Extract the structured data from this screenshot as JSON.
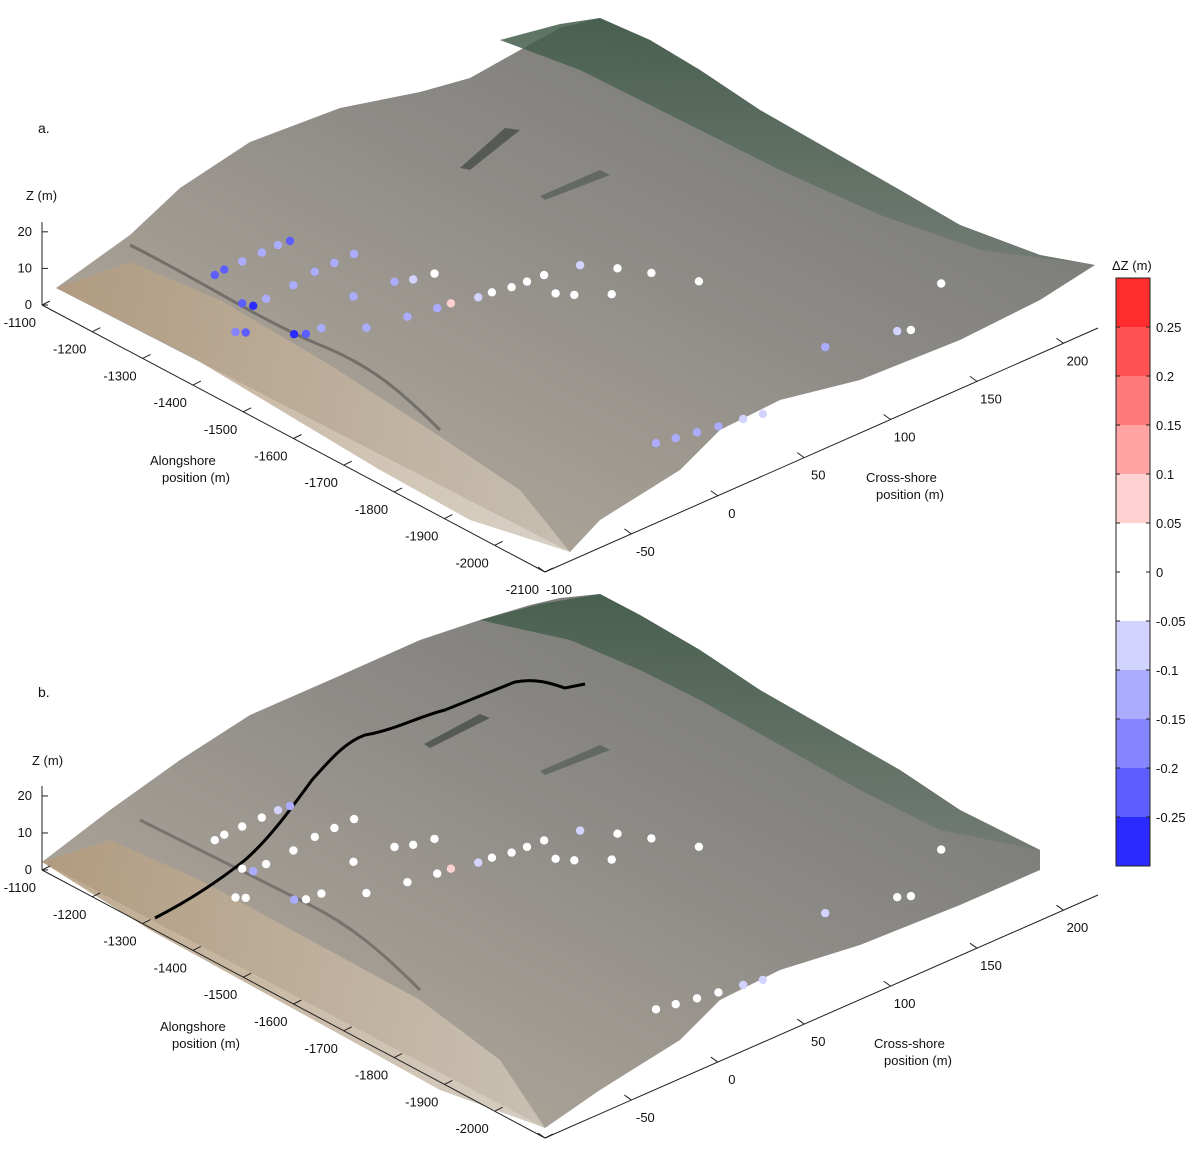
{
  "chart_data": [
    {
      "type": "scatter",
      "panel_label": "a.",
      "zlabel": "Z (m)",
      "xlabel": "Alongshore\nposition (m)",
      "ylabel": "Cross-shore\nposition (m)",
      "z_ticks": [
        0,
        10,
        20
      ],
      "x_ticks": [
        -1100,
        -1200,
        -1300,
        -1400,
        -1500,
        -1600,
        -1700,
        -1800,
        -1900,
        -2000,
        -2100
      ],
      "y_ticks": [
        -100,
        -50,
        0,
        50,
        100,
        150,
        200
      ],
      "color_variable": "ΔZ (m)",
      "points": [
        {
          "x": -1210,
          "y": -32,
          "z": 2,
          "dz": -0.22
        },
        {
          "x": -1215,
          "y": -28,
          "z": 3,
          "dz": -0.2
        },
        {
          "x": -1230,
          "y": -22,
          "z": 5,
          "dz": -0.15
        },
        {
          "x": -1245,
          "y": -15,
          "z": 7,
          "dz": -0.12
        },
        {
          "x": -1260,
          "y": -10,
          "z": 9,
          "dz": -0.15
        },
        {
          "x": -1270,
          "y": -6,
          "z": 10,
          "dz": -0.2
        },
        {
          "x": -1285,
          "y": -38,
          "z": 1,
          "dz": -0.2
        },
        {
          "x": -1300,
          "y": -36,
          "z": 1,
          "dz": -0.28
        },
        {
          "x": -1305,
          "y": -30,
          "z": 2,
          "dz": -0.15
        },
        {
          "x": -1325,
          "y": -20,
          "z": 5,
          "dz": -0.12
        },
        {
          "x": -1340,
          "y": -12,
          "z": 8,
          "dz": -0.12
        },
        {
          "x": -1355,
          "y": -5,
          "z": 10,
          "dz": -0.12
        },
        {
          "x": -1370,
          "y": 2,
          "z": 12,
          "dz": -0.15
        },
        {
          "x": -1395,
          "y": -40,
          "z": 1,
          "dz": -0.28
        },
        {
          "x": -1405,
          "y": -36,
          "z": 1,
          "dz": -0.2
        },
        {
          "x": -1415,
          "y": -30,
          "z": 2,
          "dz": -0.12
        },
        {
          "x": -1330,
          "y": -55,
          "z": 0,
          "dz": -0.18
        },
        {
          "x": -1340,
          "y": -52,
          "z": 0,
          "dz": -0.2
        },
        {
          "x": -1410,
          "y": -10,
          "z": 6,
          "dz": -0.12
        },
        {
          "x": -1440,
          "y": 5,
          "z": 9,
          "dz": -0.1
        },
        {
          "x": -1460,
          "y": 10,
          "z": 10,
          "dz": -0.06
        },
        {
          "x": -1475,
          "y": 18,
          "z": 11,
          "dz": -0.04
        },
        {
          "x": -1470,
          "y": -20,
          "z": 4,
          "dz": -0.12
        },
        {
          "x": -1500,
          "y": -5,
          "z": 6,
          "dz": -0.12
        },
        {
          "x": -1525,
          "y": 5,
          "z": 8,
          "dz": -0.1
        },
        {
          "x": -1535,
          "y": 10,
          "z": 9,
          "dz": 0.08
        },
        {
          "x": -1555,
          "y": 20,
          "z": 10,
          "dz": -0.06
        },
        {
          "x": -1565,
          "y": 25,
          "z": 11,
          "dz": -0.04
        },
        {
          "x": -1580,
          "y": 32,
          "z": 12,
          "dz": -0.02
        },
        {
          "x": -1590,
          "y": 38,
          "z": 13,
          "dz": -0.03
        },
        {
          "x": -1600,
          "y": 45,
          "z": 14,
          "dz": -0.02
        },
        {
          "x": -1620,
          "y": 60,
          "z": 15,
          "dz": -0.08
        },
        {
          "x": -1660,
          "y": 70,
          "z": 15,
          "dz": 0.0
        },
        {
          "x": -1700,
          "y": 78,
          "z": 15,
          "dz": 0.0
        },
        {
          "x": -1760,
          "y": 88,
          "z": 15,
          "dz": 0.0
        },
        {
          "x": -1640,
          "y": 40,
          "z": 13,
          "dz": 0.0
        },
        {
          "x": -1660,
          "y": 45,
          "z": 13,
          "dz": -0.02
        },
        {
          "x": -1700,
          "y": 55,
          "z": 14,
          "dz": 0.0
        },
        {
          "x": -1960,
          "y": 5,
          "z": 3,
          "dz": -0.15
        },
        {
          "x": -1975,
          "y": 12,
          "z": 4,
          "dz": -0.12
        },
        {
          "x": -1990,
          "y": 20,
          "z": 5,
          "dz": -0.1
        },
        {
          "x": -2005,
          "y": 28,
          "z": 6,
          "dz": -0.1
        },
        {
          "x": -2020,
          "y": 38,
          "z": 7,
          "dz": -0.08
        },
        {
          "x": -2035,
          "y": 45,
          "z": 8,
          "dz": -0.06
        },
        {
          "x": -1970,
          "y": 100,
          "z": 10,
          "dz": -0.1
        },
        {
          "x": -2010,
          "y": 130,
          "z": 11,
          "dz": -0.06
        },
        {
          "x": -2020,
          "y": 135,
          "z": 11,
          "dz": -0.02
        },
        {
          "x": -1960,
          "y": 170,
          "z": 12,
          "dz": 0.0
        }
      ]
    },
    {
      "type": "scatter",
      "panel_label": "b.",
      "zlabel": "Z (m)",
      "xlabel": "Alongshore\nposition (m)",
      "ylabel": "Cross-shore\nposition (m)",
      "z_ticks": [
        0,
        10,
        20
      ],
      "x_ticks": [
        -1100,
        -1200,
        -1300,
        -1400,
        -1500,
        -1600,
        -1700,
        -1800,
        -1900,
        -2000,
        -2100
      ],
      "y_ticks": [
        -100,
        -50,
        0,
        50,
        100,
        150,
        200
      ],
      "color_variable": "ΔZ (m)",
      "points": [
        {
          "x": -1210,
          "y": -32,
          "z": 2,
          "dz": 0.0
        },
        {
          "x": -1215,
          "y": -28,
          "z": 3,
          "dz": 0.0
        },
        {
          "x": -1230,
          "y": -22,
          "z": 5,
          "dz": -0.04
        },
        {
          "x": -1245,
          "y": -15,
          "z": 7,
          "dz": 0.0
        },
        {
          "x": -1260,
          "y": -10,
          "z": 9,
          "dz": -0.06
        },
        {
          "x": -1270,
          "y": -6,
          "z": 10,
          "dz": -0.1
        },
        {
          "x": -1285,
          "y": -38,
          "z": 1,
          "dz": 0.0
        },
        {
          "x": -1300,
          "y": -36,
          "z": 1,
          "dz": -0.1
        },
        {
          "x": -1305,
          "y": -30,
          "z": 2,
          "dz": 0.0
        },
        {
          "x": -1325,
          "y": -20,
          "z": 5,
          "dz": 0.0
        },
        {
          "x": -1340,
          "y": -12,
          "z": 8,
          "dz": 0.0
        },
        {
          "x": -1355,
          "y": -5,
          "z": 10,
          "dz": 0.0
        },
        {
          "x": -1370,
          "y": 2,
          "z": 12,
          "dz": 0.0
        },
        {
          "x": -1395,
          "y": -40,
          "z": 1,
          "dz": -0.15
        },
        {
          "x": -1405,
          "y": -36,
          "z": 1,
          "dz": -0.02
        },
        {
          "x": -1415,
          "y": -30,
          "z": 2,
          "dz": 0.0
        },
        {
          "x": -1330,
          "y": -55,
          "z": 0,
          "dz": 0.0
        },
        {
          "x": -1340,
          "y": -52,
          "z": 0,
          "dz": 0.0
        },
        {
          "x": -1410,
          "y": -10,
          "z": 6,
          "dz": 0.0
        },
        {
          "x": -1440,
          "y": 5,
          "z": 9,
          "dz": 0.0
        },
        {
          "x": -1460,
          "y": 10,
          "z": 10,
          "dz": -0.04
        },
        {
          "x": -1475,
          "y": 18,
          "z": 11,
          "dz": -0.04
        },
        {
          "x": -1470,
          "y": -20,
          "z": 4,
          "dz": 0.0
        },
        {
          "x": -1500,
          "y": -5,
          "z": 6,
          "dz": 0.0
        },
        {
          "x": -1525,
          "y": 5,
          "z": 8,
          "dz": -0.04
        },
        {
          "x": -1535,
          "y": 10,
          "z": 9,
          "dz": 0.08
        },
        {
          "x": -1555,
          "y": 20,
          "z": 10,
          "dz": -0.06
        },
        {
          "x": -1565,
          "y": 25,
          "z": 11,
          "dz": -0.02
        },
        {
          "x": -1580,
          "y": 32,
          "z": 12,
          "dz": 0.0
        },
        {
          "x": -1590,
          "y": 38,
          "z": 13,
          "dz": -0.03
        },
        {
          "x": -1600,
          "y": 45,
          "z": 14,
          "dz": 0.0
        },
        {
          "x": -1620,
          "y": 60,
          "z": 15,
          "dz": -0.08
        },
        {
          "x": -1660,
          "y": 70,
          "z": 15,
          "dz": 0.0
        },
        {
          "x": -1700,
          "y": 78,
          "z": 15,
          "dz": 0.0
        },
        {
          "x": -1760,
          "y": 88,
          "z": 15,
          "dz": 0.0
        },
        {
          "x": -1640,
          "y": 40,
          "z": 13,
          "dz": 0.0
        },
        {
          "x": -1660,
          "y": 45,
          "z": 13,
          "dz": 0.0
        },
        {
          "x": -1700,
          "y": 55,
          "z": 14,
          "dz": 0.0
        },
        {
          "x": -1960,
          "y": 5,
          "z": 3,
          "dz": 0.0
        },
        {
          "x": -1975,
          "y": 12,
          "z": 4,
          "dz": 0.0
        },
        {
          "x": -1990,
          "y": 20,
          "z": 5,
          "dz": 0.0
        },
        {
          "x": -2005,
          "y": 28,
          "z": 6,
          "dz": 0.0
        },
        {
          "x": -2020,
          "y": 38,
          "z": 7,
          "dz": -0.06
        },
        {
          "x": -2035,
          "y": 45,
          "z": 8,
          "dz": -0.06
        },
        {
          "x": -1970,
          "y": 100,
          "z": 10,
          "dz": -0.08
        },
        {
          "x": -2010,
          "y": 130,
          "z": 11,
          "dz": -0.02
        },
        {
          "x": -2020,
          "y": 135,
          "z": 11,
          "dz": -0.04
        },
        {
          "x": -1960,
          "y": 170,
          "z": 12,
          "dz": 0.0
        }
      ]
    }
  ],
  "colorbar": {
    "title": "ΔZ (m)",
    "range": [
      -0.3,
      0.3
    ],
    "ticks": [
      0.25,
      0.2,
      0.15,
      0.1,
      0.05,
      0,
      -0.05,
      -0.1,
      -0.15,
      -0.2,
      -0.25
    ],
    "tick_labels": [
      "0.25",
      "0.2",
      "0.15",
      "0.1",
      "0.05",
      "0",
      "-0.05",
      "-0.1",
      "-0.15",
      "-0.2",
      "-0.25"
    ],
    "colors_top_to_bottom": [
      "#ff2d2d",
      "#ff5252",
      "#ff7a7a",
      "#ffa3a3",
      "#ffd1d1",
      "#ffffff",
      "#ffffff",
      "#d3d3ff",
      "#acacff",
      "#8585ff",
      "#5e5eff",
      "#2b2bff"
    ]
  }
}
